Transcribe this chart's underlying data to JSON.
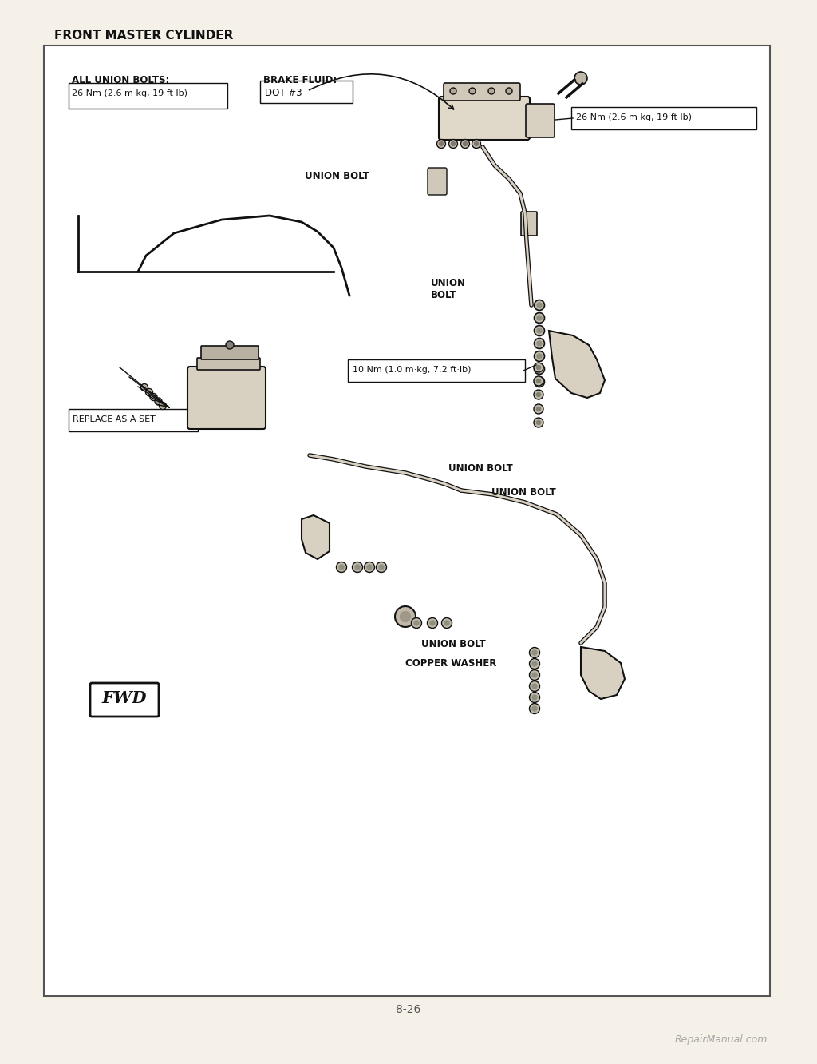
{
  "page_title": "FRONT MASTER CYLINDER",
  "page_number": "8-26",
  "watermark": "RepairManual.com",
  "bg_color": "#f5f0e8",
  "border_color": "#555555",
  "text_color": "#111111",
  "labels": {
    "all_union_bolts": "ALL UNION BOLTS:",
    "all_union_bolts_val": "26 Nm (2.6 m·kg, 19 ft·lb)",
    "brake_fluid": "BRAKE FLUID:",
    "brake_fluid_val": "DOT #3",
    "torque_26_right": "26 Nm (2.6 m·kg, 19 ft·lb)",
    "union_bolt_upper": "UNION BOLT",
    "union_bolt_mid": "UNION\nBOLT",
    "torque_10": "10 Nm (1.0 m·kg, 7.2 ft·lb)",
    "replace_as_set": "REPLACE AS A SET",
    "union_bolt_lower1": "UNION BOLT",
    "union_bolt_lower2": "UNION BOLT",
    "union_bolt_bottom": "UNION BOLT",
    "copper_washer": "COPPER WASHER",
    "fwd": "FWD"
  }
}
